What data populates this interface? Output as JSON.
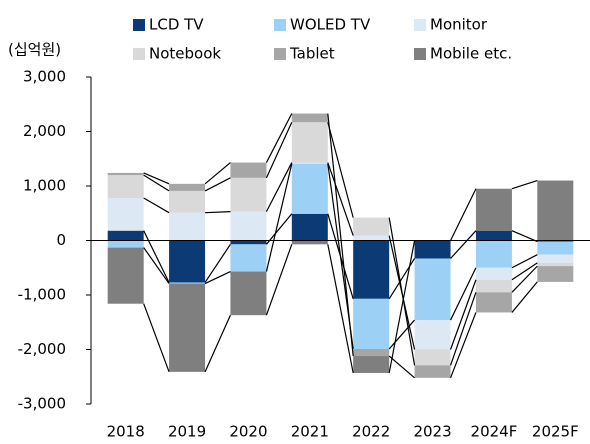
{
  "chart_data": {
    "type": "bar",
    "stacked": true,
    "unit": "(십억원)",
    "categories": [
      "2018",
      "2019",
      "2020",
      "2021",
      "2022",
      "2023",
      "2024F",
      "2025F"
    ],
    "series": [
      {
        "name": "LCD TV",
        "color": "#0b3a75",
        "values": [
          180,
          -770,
          -70,
          490,
          -1070,
          -330,
          180,
          -20
        ]
      },
      {
        "name": "WOLED TV",
        "color": "#9dd0f5",
        "values": [
          -130,
          -20,
          -500,
          920,
          -920,
          -1130,
          -500,
          -240
        ]
      },
      {
        "name": "Monitor",
        "color": "#dde8f5",
        "values": [
          600,
          510,
          530,
          20,
          90,
          -540,
          -220,
          -150
        ]
      },
      {
        "name": "Notebook",
        "color": "#d9d9d9",
        "values": [
          420,
          400,
          620,
          740,
          330,
          -290,
          -230,
          -60
        ]
      },
      {
        "name": "Tablet",
        "color": "#a6a6a6",
        "values": [
          40,
          130,
          280,
          160,
          -130,
          -230,
          -370,
          -290
        ]
      },
      {
        "name": "Mobile etc.",
        "color": "#7f7f7f",
        "values": [
          -1030,
          -1620,
          -800,
          -70,
          -310,
          0,
          770,
          1100
        ]
      }
    ],
    "ylim": [
      -3000,
      3000
    ],
    "yticks": [
      {
        "value": -3000,
        "label": "-3,000"
      },
      {
        "value": -2000,
        "label": "-2,000"
      },
      {
        "value": -1000,
        "label": "-1,000"
      },
      0,
      {
        "value": 1000,
        "label": "1,000"
      },
      {
        "value": 2000,
        "label": "2,000"
      },
      {
        "value": 3000,
        "label": "3,000"
      }
    ],
    "legend": "top",
    "connector_lines": true
  }
}
